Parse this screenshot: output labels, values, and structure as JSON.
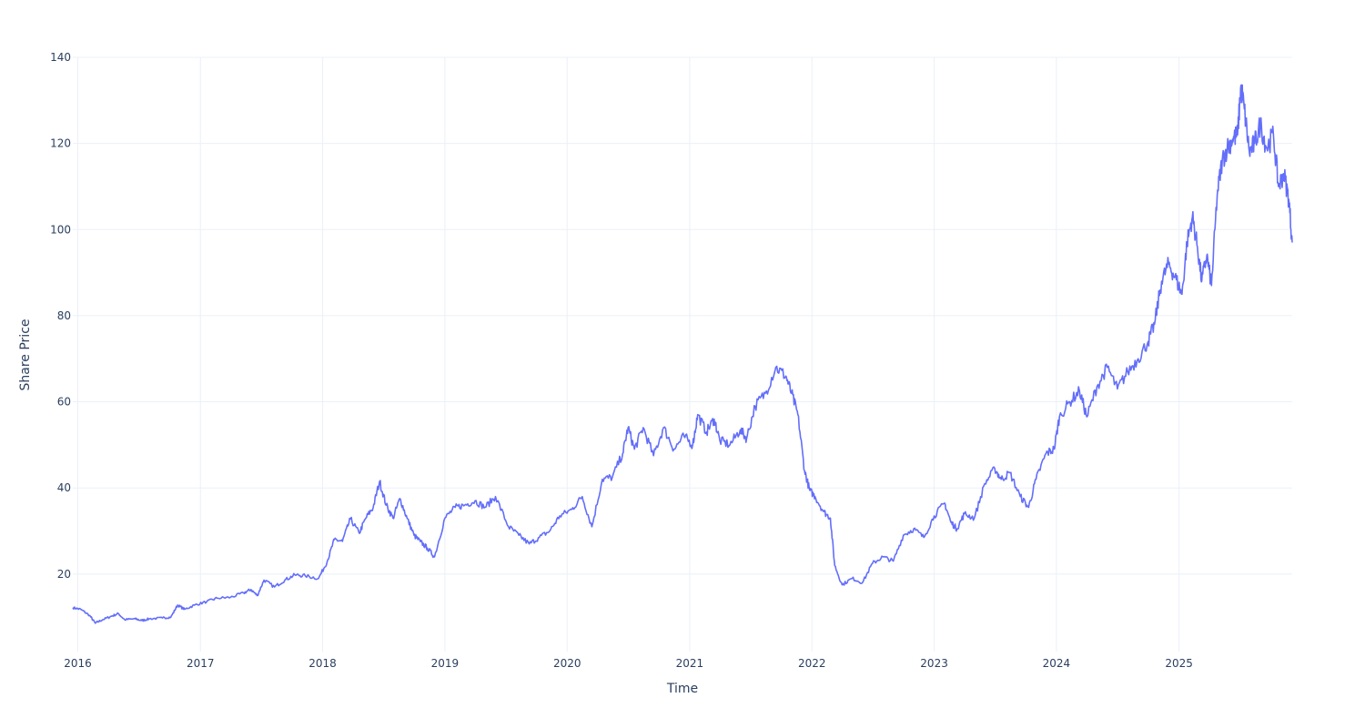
{
  "chart_data": {
    "type": "line",
    "title": "",
    "xlabel": "Time",
    "ylabel": "Share Price",
    "grid": true,
    "legend": "none",
    "x_ticks": [
      "2016",
      "2017",
      "2018",
      "2019",
      "2020",
      "2021",
      "2022",
      "2023",
      "2024",
      "2025"
    ],
    "y_ticks": [
      20,
      40,
      60,
      80,
      100,
      120,
      140
    ],
    "ylim": [
      2,
      140
    ],
    "xlim": [
      "2015-12-17",
      "2025-12-05"
    ],
    "series": [
      {
        "color": "#636efa",
        "points": [
          [
            "2015-12-17",
            12.2
          ],
          [
            "2016-01-10",
            11.8
          ],
          [
            "2016-02-05",
            10.4
          ],
          [
            "2016-02-22",
            8.6
          ],
          [
            "2016-03-15",
            9.4
          ],
          [
            "2016-04-10",
            10.2
          ],
          [
            "2016-05-01",
            10.8
          ],
          [
            "2016-05-20",
            9.4
          ],
          [
            "2016-06-20",
            9.6
          ],
          [
            "2016-07-10",
            9.2
          ],
          [
            "2016-08-01",
            9.6
          ],
          [
            "2016-09-10",
            9.8
          ],
          [
            "2016-10-05",
            10.0
          ],
          [
            "2016-10-25",
            12.8
          ],
          [
            "2016-11-15",
            11.8
          ],
          [
            "2016-12-15",
            12.8
          ],
          [
            "2017-01-20",
            13.6
          ],
          [
            "2017-02-20",
            14.4
          ],
          [
            "2017-04-01",
            14.6
          ],
          [
            "2017-05-10",
            15.6
          ],
          [
            "2017-06-01",
            16.4
          ],
          [
            "2017-06-20",
            15.0
          ],
          [
            "2017-07-10",
            18.6
          ],
          [
            "2017-08-10",
            17.0
          ],
          [
            "2017-09-10",
            18.6
          ],
          [
            "2017-10-10",
            19.8
          ],
          [
            "2017-11-10",
            19.6
          ],
          [
            "2017-12-20",
            19.0
          ],
          [
            "2018-01-15",
            23.0
          ],
          [
            "2018-02-05",
            28.0
          ],
          [
            "2018-03-01",
            27.6
          ],
          [
            "2018-03-25",
            32.8
          ],
          [
            "2018-04-20",
            29.5
          ],
          [
            "2018-05-10",
            33.0
          ],
          [
            "2018-06-01",
            35.5
          ],
          [
            "2018-06-20",
            41.5
          ],
          [
            "2018-07-10",
            36.0
          ],
          [
            "2018-07-30",
            33.0
          ],
          [
            "2018-08-20",
            37.5
          ],
          [
            "2018-09-10",
            33.0
          ],
          [
            "2018-10-01",
            29.0
          ],
          [
            "2018-10-20",
            27.5
          ],
          [
            "2018-11-10",
            26.0
          ],
          [
            "2018-12-01",
            24.0
          ],
          [
            "2019-01-01",
            33.0
          ],
          [
            "2019-02-01",
            35.5
          ],
          [
            "2019-03-01",
            36.0
          ],
          [
            "2019-04-01",
            37.0
          ],
          [
            "2019-05-01",
            35.5
          ],
          [
            "2019-06-01",
            38.0
          ],
          [
            "2019-07-10",
            31.0
          ],
          [
            "2019-08-10",
            29.0
          ],
          [
            "2019-09-10",
            27.0
          ],
          [
            "2019-10-10",
            28.5
          ],
          [
            "2019-11-10",
            30.0
          ],
          [
            "2019-12-10",
            33.5
          ],
          [
            "2020-01-15",
            35.0
          ],
          [
            "2020-02-15",
            38.0
          ],
          [
            "2020-03-15",
            31.0
          ],
          [
            "2020-04-15",
            42.0
          ],
          [
            "2020-05-15",
            42.5
          ],
          [
            "2020-06-15",
            48.0
          ],
          [
            "2020-07-01",
            54.0
          ],
          [
            "2020-07-20",
            49.0
          ],
          [
            "2020-08-15",
            54.0
          ],
          [
            "2020-09-15",
            47.5
          ],
          [
            "2020-10-15",
            54.0
          ],
          [
            "2020-11-15",
            49.0
          ],
          [
            "2020-12-15",
            52.0
          ],
          [
            "2021-01-10",
            50.0
          ],
          [
            "2021-01-25",
            57.0
          ],
          [
            "2021-02-20",
            53.0
          ],
          [
            "2021-03-15",
            56.0
          ],
          [
            "2021-04-01",
            51.0
          ],
          [
            "2021-05-01",
            50.0
          ],
          [
            "2021-06-01",
            53.5
          ],
          [
            "2021-06-20",
            51.5
          ],
          [
            "2021-07-15",
            59.0
          ],
          [
            "2021-08-15",
            62.0
          ],
          [
            "2021-09-15",
            68.0
          ],
          [
            "2021-10-15",
            66.0
          ],
          [
            "2021-11-01",
            62.0
          ],
          [
            "2021-11-20",
            57.0
          ],
          [
            "2021-12-10",
            44.0
          ],
          [
            "2021-12-25",
            39.5
          ],
          [
            "2022-01-10",
            38.0
          ],
          [
            "2022-02-05",
            34.5
          ],
          [
            "2022-02-25",
            33.0
          ],
          [
            "2022-03-10",
            22.0
          ],
          [
            "2022-04-01",
            17.5
          ],
          [
            "2022-05-01",
            19.0
          ],
          [
            "2022-06-01",
            18.0
          ],
          [
            "2022-07-01",
            22.5
          ],
          [
            "2022-08-01",
            24.0
          ],
          [
            "2022-09-01",
            23.0
          ],
          [
            "2022-10-01",
            29.0
          ],
          [
            "2022-11-01",
            30.5
          ],
          [
            "2022-12-01",
            28.5
          ],
          [
            "2023-01-01",
            33.5
          ],
          [
            "2023-02-01",
            36.5
          ],
          [
            "2023-02-20",
            32.0
          ],
          [
            "2023-03-10",
            30.5
          ],
          [
            "2023-04-01",
            34.0
          ],
          [
            "2023-05-01",
            33.0
          ],
          [
            "2023-06-01",
            41.0
          ],
          [
            "2023-07-01",
            44.5
          ],
          [
            "2023-07-20",
            42.0
          ],
          [
            "2023-08-15",
            43.5
          ],
          [
            "2023-09-15",
            38.0
          ],
          [
            "2023-10-10",
            35.5
          ],
          [
            "2023-11-01",
            42.0
          ],
          [
            "2023-12-01",
            48.0
          ],
          [
            "2023-12-25",
            49.0
          ],
          [
            "2024-01-10",
            56.5
          ],
          [
            "2024-02-10",
            60.0
          ],
          [
            "2024-03-10",
            62.5
          ],
          [
            "2024-04-01",
            56.5
          ],
          [
            "2024-05-01",
            63.5
          ],
          [
            "2024-06-01",
            68.0
          ],
          [
            "2024-07-01",
            63.0
          ],
          [
            "2024-08-01",
            67.0
          ],
          [
            "2024-09-01",
            70.0
          ],
          [
            "2024-10-01",
            74.0
          ],
          [
            "2024-10-20",
            78.0
          ],
          [
            "2024-11-10",
            88.0
          ],
          [
            "2024-12-01",
            92.0
          ],
          [
            "2024-12-20",
            89.0
          ],
          [
            "2025-01-10",
            85.0
          ],
          [
            "2025-01-25",
            97.0
          ],
          [
            "2025-02-10",
            103.0
          ],
          [
            "2025-02-25",
            96.0
          ],
          [
            "2025-03-10",
            88.0
          ],
          [
            "2025-03-25",
            94.0
          ],
          [
            "2025-04-08",
            87.0
          ],
          [
            "2025-04-25",
            108.0
          ],
          [
            "2025-05-10",
            116.0
          ],
          [
            "2025-05-25",
            119.0
          ],
          [
            "2025-06-10",
            121.0
          ],
          [
            "2025-06-25",
            122.0
          ],
          [
            "2025-07-05",
            133.5
          ],
          [
            "2025-07-15",
            128.0
          ],
          [
            "2025-07-30",
            118.0
          ],
          [
            "2025-08-15",
            120.0
          ],
          [
            "2025-09-01",
            124.5
          ],
          [
            "2025-09-20",
            119.0
          ],
          [
            "2025-10-10",
            122.0
          ],
          [
            "2025-10-25",
            110.0
          ],
          [
            "2025-11-10",
            113.0
          ],
          [
            "2025-11-25",
            107.0
          ],
          [
            "2025-12-05",
            97.0
          ]
        ]
      }
    ]
  }
}
